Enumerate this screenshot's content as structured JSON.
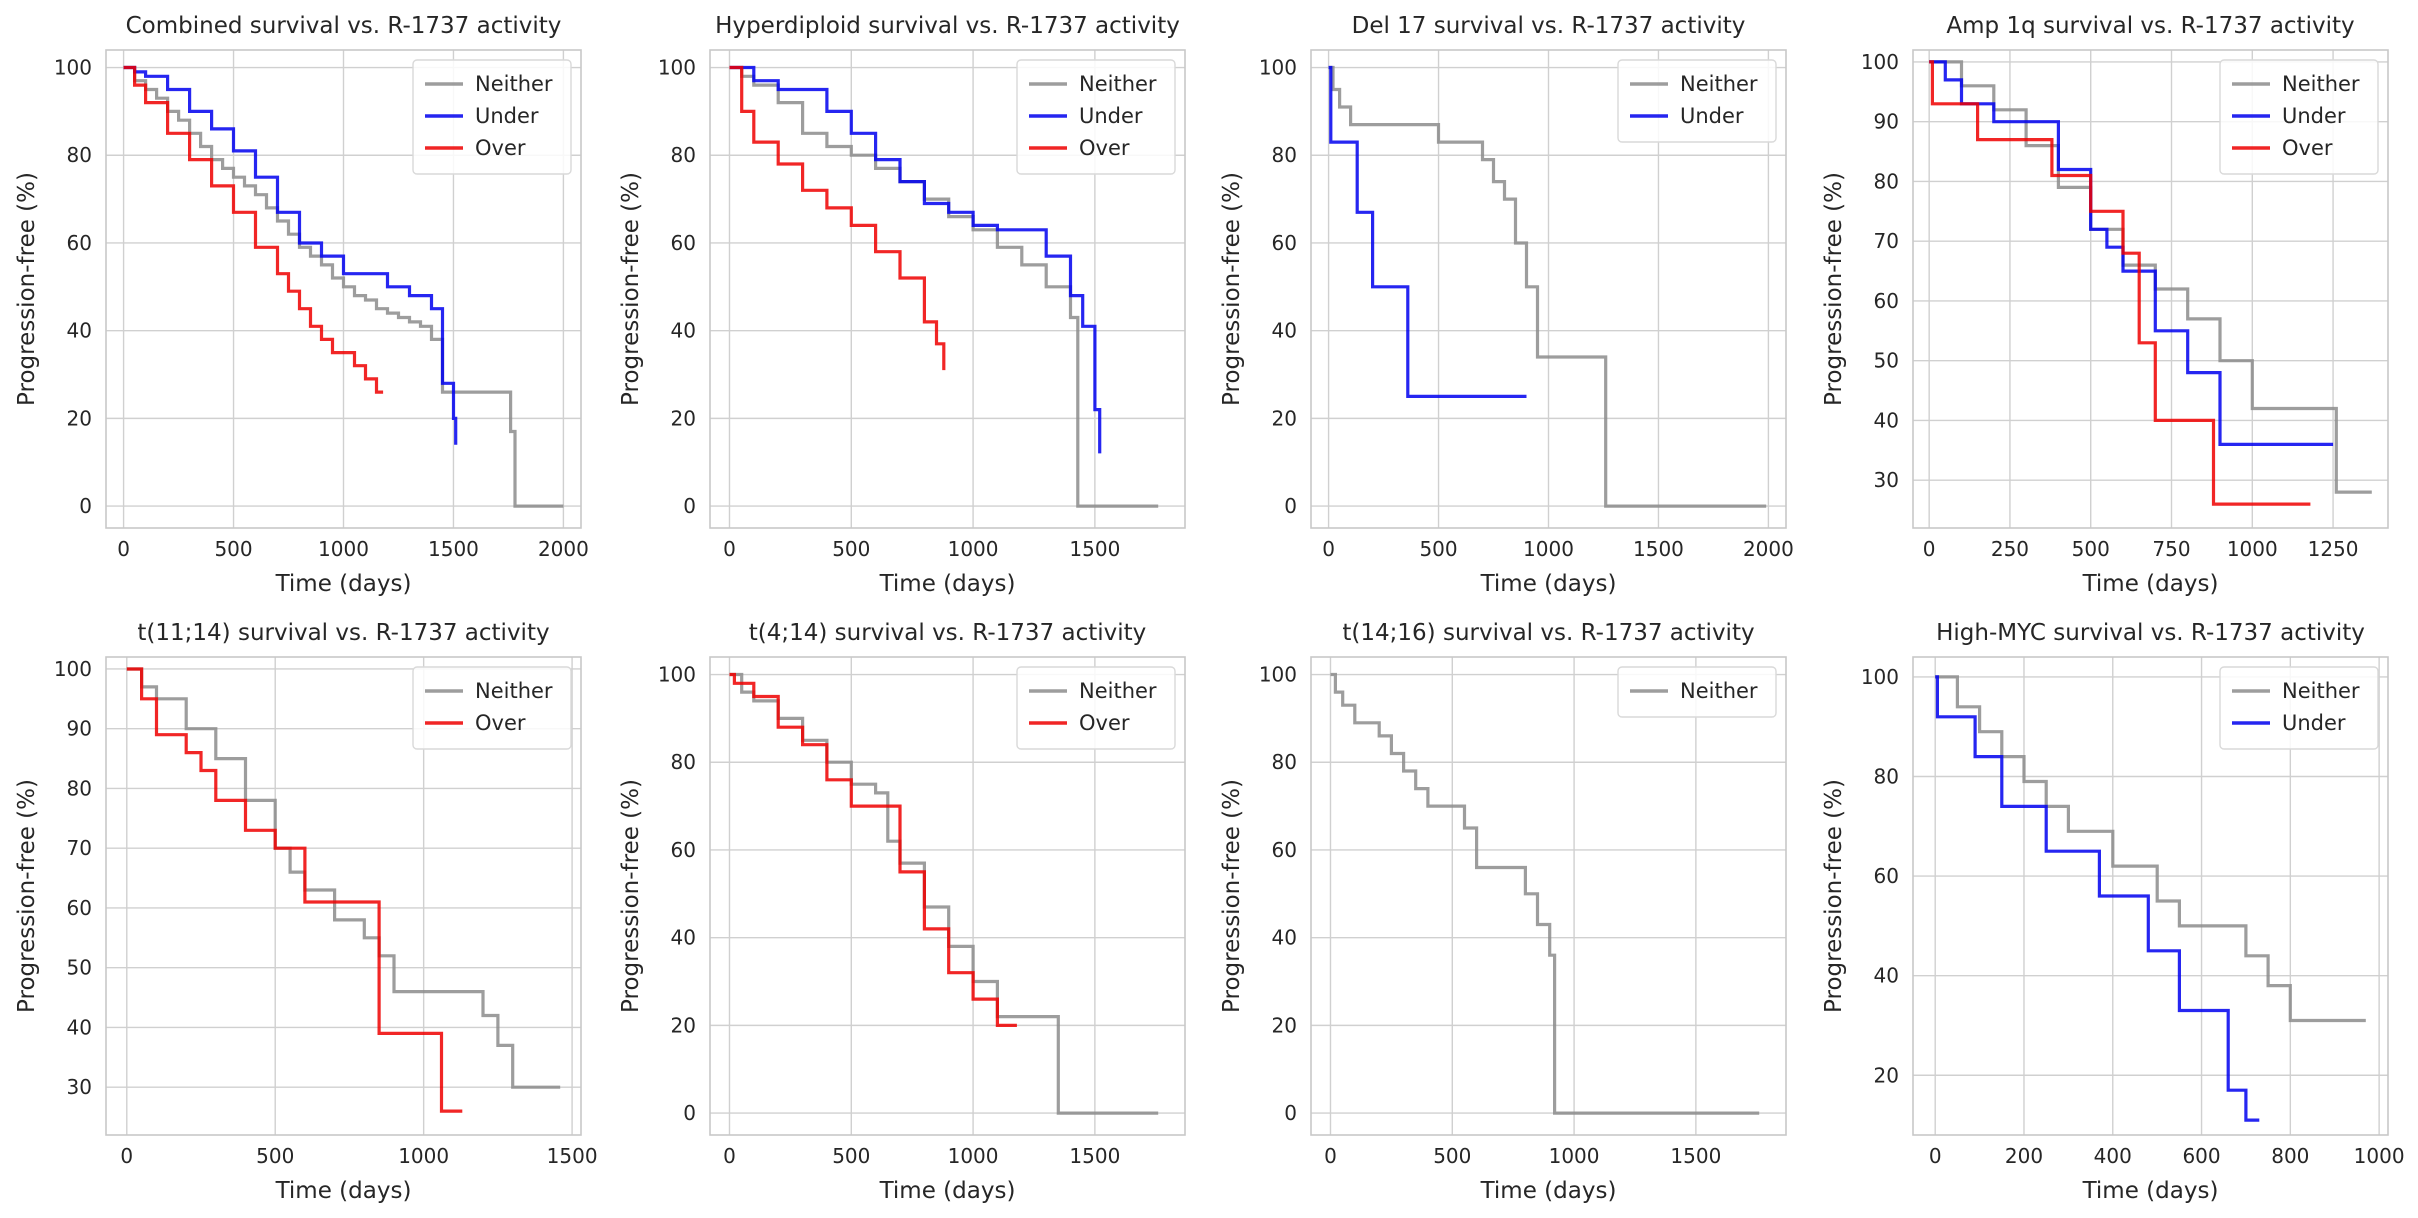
{
  "colors": {
    "Neither": "#8c8c8c",
    "Under": "#0000ee",
    "Over": "#ee0000",
    "grid": "#d0d0d0",
    "frame": "#c8c8c8"
  },
  "chart_data": [
    {
      "type": "line",
      "title": "Combined survival vs. R-1737 activity",
      "xlabel": "Time (days)",
      "ylabel": "Progression-free (%)",
      "xlim": [
        -80,
        2080
      ],
      "ylim": [
        -5,
        104
      ],
      "xticks": [
        0,
        500,
        1000,
        1500,
        2000
      ],
      "yticks": [
        0,
        20,
        40,
        60,
        80,
        100
      ],
      "grid": true,
      "legend": "top-right",
      "series": [
        {
          "name": "Neither",
          "x": [
            0,
            50,
            100,
            150,
            200,
            250,
            300,
            350,
            400,
            450,
            500,
            550,
            600,
            650,
            700,
            750,
            800,
            850,
            900,
            950,
            1000,
            1050,
            1100,
            1150,
            1200,
            1250,
            1300,
            1350,
            1400,
            1450,
            1500,
            1550,
            1600,
            1650,
            1700,
            1760,
            1760,
            1780,
            1780,
            2000
          ],
          "y": [
            100,
            97,
            95,
            93,
            90,
            88,
            85,
            82,
            79,
            77,
            75,
            73,
            71,
            68,
            65,
            62,
            59,
            57,
            55,
            52,
            50,
            48,
            47,
            45,
            44,
            43,
            42,
            41,
            38,
            26,
            26,
            26,
            26,
            26,
            26,
            26,
            17,
            17,
            0,
            0
          ]
        },
        {
          "name": "Under",
          "x": [
            0,
            50,
            100,
            200,
            300,
            400,
            500,
            600,
            700,
            800,
            900,
            1000,
            1100,
            1200,
            1300,
            1400,
            1450,
            1500,
            1510
          ],
          "y": [
            100,
            99,
            98,
            95,
            90,
            86,
            81,
            75,
            67,
            60,
            57,
            53,
            53,
            50,
            48,
            45,
            28,
            20,
            14
          ]
        },
        {
          "name": "Over",
          "x": [
            0,
            50,
            100,
            200,
            300,
            400,
            500,
            600,
            700,
            750,
            800,
            850,
            900,
            950,
            1000,
            1050,
            1100,
            1150,
            1180
          ],
          "y": [
            100,
            96,
            92,
            85,
            79,
            73,
            67,
            59,
            53,
            49,
            45,
            41,
            38,
            35,
            35,
            32,
            29,
            26,
            26
          ]
        }
      ]
    },
    {
      "type": "line",
      "title": "Hyperdiploid survival vs. R-1737 activity",
      "xlabel": "Time (days)",
      "ylabel": "Progression-free (%)",
      "xlim": [
        -80,
        1870
      ],
      "ylim": [
        -5,
        104
      ],
      "xticks": [
        0,
        500,
        1000,
        1500
      ],
      "yticks": [
        0,
        20,
        40,
        60,
        80,
        100
      ],
      "grid": true,
      "legend": "top-right",
      "series": [
        {
          "name": "Neither",
          "x": [
            0,
            50,
            100,
            200,
            300,
            400,
            500,
            600,
            700,
            800,
            900,
            1000,
            1100,
            1200,
            1300,
            1400,
            1430,
            1430,
            1760
          ],
          "y": [
            100,
            98,
            96,
            92,
            85,
            82,
            80,
            77,
            74,
            70,
            66,
            63,
            59,
            55,
            50,
            43,
            40,
            0,
            0
          ]
        },
        {
          "name": "Under",
          "x": [
            0,
            100,
            200,
            300,
            400,
            500,
            600,
            700,
            800,
            900,
            1000,
            1100,
            1200,
            1300,
            1400,
            1450,
            1500,
            1520
          ],
          "y": [
            100,
            97,
            95,
            95,
            90,
            85,
            79,
            74,
            69,
            67,
            64,
            63,
            63,
            57,
            48,
            41,
            22,
            12
          ]
        },
        {
          "name": "Over",
          "x": [
            0,
            50,
            100,
            200,
            300,
            400,
            500,
            600,
            700,
            800,
            850,
            880
          ],
          "y": [
            100,
            90,
            83,
            78,
            72,
            68,
            64,
            58,
            52,
            42,
            37,
            31
          ]
        }
      ]
    },
    {
      "type": "line",
      "title": "Del 17 survival vs. R-1737 activity",
      "xlabel": "Time (days)",
      "ylabel": "Progression-free (%)",
      "xlim": [
        -80,
        2080
      ],
      "ylim": [
        -5,
        104
      ],
      "xticks": [
        0,
        500,
        1000,
        1500,
        2000
      ],
      "yticks": [
        0,
        20,
        40,
        60,
        80,
        100
      ],
      "grid": true,
      "legend": "top-right",
      "series": [
        {
          "name": "Neither",
          "x": [
            0,
            20,
            50,
            100,
            300,
            400,
            500,
            600,
            700,
            750,
            800,
            850,
            900,
            950,
            1000,
            1260,
            1260,
            1990
          ],
          "y": [
            100,
            95,
            91,
            87,
            87,
            87,
            83,
            83,
            79,
            74,
            70,
            60,
            50,
            34,
            34,
            34,
            0,
            0
          ]
        },
        {
          "name": "Under",
          "x": [
            0,
            10,
            10,
            130,
            130,
            200,
            200,
            360,
            360,
            900
          ],
          "y": [
            100,
            100,
            83,
            83,
            67,
            67,
            50,
            50,
            25,
            25
          ]
        }
      ]
    },
    {
      "type": "line",
      "title": "Amp 1q survival vs. R-1737 activity",
      "xlabel": "Time (days)",
      "ylabel": "Progression-free (%)",
      "xlim": [
        -50,
        1420
      ],
      "ylim": [
        22,
        102
      ],
      "xticks": [
        0,
        250,
        500,
        750,
        1000,
        1250
      ],
      "yticks": [
        30,
        40,
        50,
        60,
        70,
        80,
        90,
        100
      ],
      "grid": true,
      "legend": "top-right",
      "series": [
        {
          "name": "Neither",
          "x": [
            0,
            100,
            200,
            300,
            400,
            500,
            600,
            700,
            800,
            900,
            1000,
            1100,
            1200,
            1260,
            1260,
            1370
          ],
          "y": [
            100,
            96,
            92,
            86,
            79,
            72,
            66,
            62,
            57,
            50,
            42,
            42,
            42,
            42,
            28,
            28
          ]
        },
        {
          "name": "Under",
          "x": [
            0,
            50,
            100,
            200,
            300,
            400,
            500,
            550,
            600,
            700,
            800,
            900,
            1000,
            1100,
            1250
          ],
          "y": [
            100,
            97,
            93,
            90,
            90,
            82,
            72,
            69,
            65,
            55,
            48,
            36,
            36,
            36,
            36
          ]
        },
        {
          "name": "Over",
          "x": [
            0,
            10,
            10,
            150,
            150,
            380,
            380,
            500,
            500,
            600,
            600,
            650,
            650,
            700,
            700,
            880,
            880,
            1180
          ],
          "y": [
            100,
            100,
            93,
            93,
            87,
            87,
            81,
            81,
            75,
            75,
            68,
            68,
            53,
            53,
            40,
            40,
            26,
            26
          ]
        }
      ]
    },
    {
      "type": "line",
      "title": "t(11;14) survival vs. R-1737 activity",
      "xlabel": "Time (days)",
      "ylabel": "Progression-free (%)",
      "xlim": [
        -70,
        1530
      ],
      "ylim": [
        22,
        102
      ],
      "xticks": [
        0,
        500,
        1000,
        1500
      ],
      "yticks": [
        30,
        40,
        50,
        60,
        70,
        80,
        90,
        100
      ],
      "grid": true,
      "legend": "top-right",
      "series": [
        {
          "name": "Neither",
          "x": [
            0,
            50,
            100,
            200,
            300,
            400,
            500,
            550,
            600,
            700,
            800,
            850,
            900,
            1000,
            1100,
            1200,
            1250,
            1300,
            1460
          ],
          "y": [
            100,
            97,
            95,
            90,
            85,
            78,
            70,
            66,
            63,
            58,
            55,
            52,
            46,
            46,
            46,
            42,
            37,
            30,
            30
          ]
        },
        {
          "name": "Over",
          "x": [
            0,
            50,
            100,
            200,
            250,
            300,
            400,
            500,
            600,
            700,
            750,
            850,
            850,
            1060,
            1060,
            1130
          ],
          "y": [
            100,
            95,
            89,
            86,
            83,
            78,
            73,
            70,
            61,
            61,
            61,
            51,
            39,
            39,
            26,
            26
          ]
        }
      ]
    },
    {
      "type": "line",
      "title": "t(4;14) survival vs. R-1737 activity",
      "xlabel": "Time (days)",
      "ylabel": "Progression-free (%)",
      "xlim": [
        -80,
        1870
      ],
      "ylim": [
        -5,
        104
      ],
      "xticks": [
        0,
        500,
        1000,
        1500
      ],
      "yticks": [
        0,
        20,
        40,
        60,
        80,
        100
      ],
      "grid": true,
      "legend": "top-right",
      "series": [
        {
          "name": "Neither",
          "x": [
            0,
            50,
            100,
            200,
            300,
            400,
            500,
            600,
            650,
            700,
            800,
            900,
            1000,
            1100,
            1200,
            1350,
            1350,
            1760
          ],
          "y": [
            100,
            96,
            94,
            90,
            85,
            80,
            75,
            73,
            62,
            57,
            47,
            38,
            30,
            22,
            22,
            22,
            0,
            0
          ]
        },
        {
          "name": "Over",
          "x": [
            0,
            20,
            100,
            200,
            300,
            400,
            500,
            600,
            700,
            800,
            900,
            1000,
            1100,
            1180
          ],
          "y": [
            100,
            98,
            95,
            88,
            84,
            76,
            70,
            70,
            55,
            42,
            32,
            26,
            20,
            20
          ]
        }
      ]
    },
    {
      "type": "line",
      "title": "t(14;16) survival vs. R-1737 activity",
      "xlabel": "Time (days)",
      "ylabel": "Progression-free (%)",
      "xlim": [
        -80,
        1870
      ],
      "ylim": [
        -5,
        104
      ],
      "xticks": [
        0,
        500,
        1000,
        1500
      ],
      "yticks": [
        0,
        20,
        40,
        60,
        80,
        100
      ],
      "grid": true,
      "legend": "top-right",
      "series": [
        {
          "name": "Neither",
          "x": [
            0,
            20,
            50,
            100,
            200,
            250,
            300,
            350,
            400,
            500,
            550,
            600,
            700,
            800,
            850,
            900,
            920,
            920,
            1760
          ],
          "y": [
            100,
            96,
            93,
            89,
            86,
            82,
            78,
            74,
            70,
            70,
            65,
            56,
            56,
            50,
            43,
            36,
            36,
            0,
            0
          ]
        }
      ]
    },
    {
      "type": "line",
      "title": "High-MYC survival vs. R-1737 activity",
      "xlabel": "Time (days)",
      "ylabel": "Progression-free (%)",
      "xlim": [
        -50,
        1020
      ],
      "ylim": [
        8,
        104
      ],
      "xticks": [
        0,
        200,
        400,
        600,
        800,
        1000
      ],
      "yticks": [
        20,
        40,
        60,
        80,
        100
      ],
      "grid": true,
      "legend": "top-right",
      "series": [
        {
          "name": "Neither",
          "x": [
            0,
            50,
            100,
            150,
            200,
            250,
            300,
            400,
            500,
            550,
            700,
            750,
            800,
            970
          ],
          "y": [
            100,
            94,
            89,
            84,
            79,
            74,
            69,
            62,
            55,
            50,
            44,
            38,
            31,
            31
          ]
        },
        {
          "name": "Under",
          "x": [
            0,
            5,
            5,
            90,
            90,
            150,
            150,
            250,
            250,
            370,
            370,
            480,
            480,
            550,
            550,
            660,
            660,
            700,
            700,
            730
          ],
          "y": [
            100,
            100,
            92,
            92,
            84,
            84,
            74,
            74,
            65,
            65,
            56,
            56,
            45,
            45,
            33,
            33,
            17,
            17,
            11,
            11
          ]
        }
      ]
    }
  ]
}
